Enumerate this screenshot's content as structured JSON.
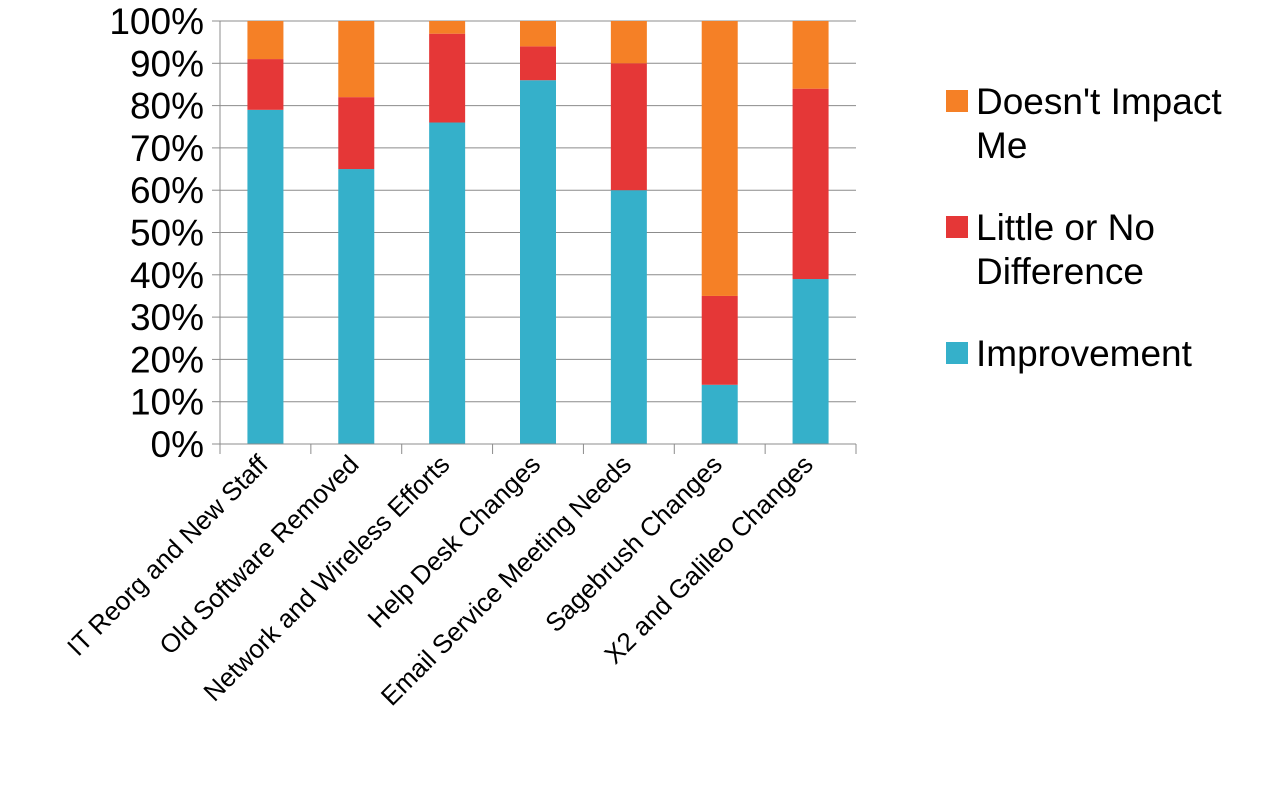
{
  "chart_data": {
    "type": "bar",
    "stacked": true,
    "percent_stacked": true,
    "title": "",
    "xlabel": "",
    "ylabel": "",
    "ylim": [
      0,
      100
    ],
    "y_tick_values": [
      0,
      10,
      20,
      30,
      40,
      50,
      60,
      70,
      80,
      90,
      100
    ],
    "y_tick_labels": [
      "0%",
      "10%",
      "20%",
      "30%",
      "40%",
      "50%",
      "60%",
      "70%",
      "80%",
      "90%",
      "100%"
    ],
    "grid": true,
    "legend_position": "right",
    "categories": [
      "IT Reorg and New Staff",
      "Old Software Removed",
      "Network and Wireless Efforts",
      "Help Desk Changes",
      "Email Service Meeting Needs",
      "Sagebrush Changes",
      "X2 and Galileo Changes"
    ],
    "series": [
      {
        "name": "Improvement",
        "color": "#35b0ca",
        "values": [
          79,
          65,
          76,
          86,
          60,
          14,
          39
        ]
      },
      {
        "name": "Little or No Difference",
        "color": "#e53737",
        "values": [
          12,
          17,
          21,
          8,
          30,
          21,
          45
        ]
      },
      {
        "name": "Doesn't Impact Me",
        "color": "#f58026",
        "values": [
          9,
          18,
          3,
          6,
          10,
          65,
          16
        ]
      }
    ],
    "legend": [
      {
        "series_index": 2,
        "lines": [
          "Doesn't Impact",
          "Me"
        ]
      },
      {
        "series_index": 1,
        "lines": [
          "Little or No",
          "Difference"
        ]
      },
      {
        "series_index": 0,
        "lines": [
          "Improvement"
        ]
      }
    ]
  }
}
